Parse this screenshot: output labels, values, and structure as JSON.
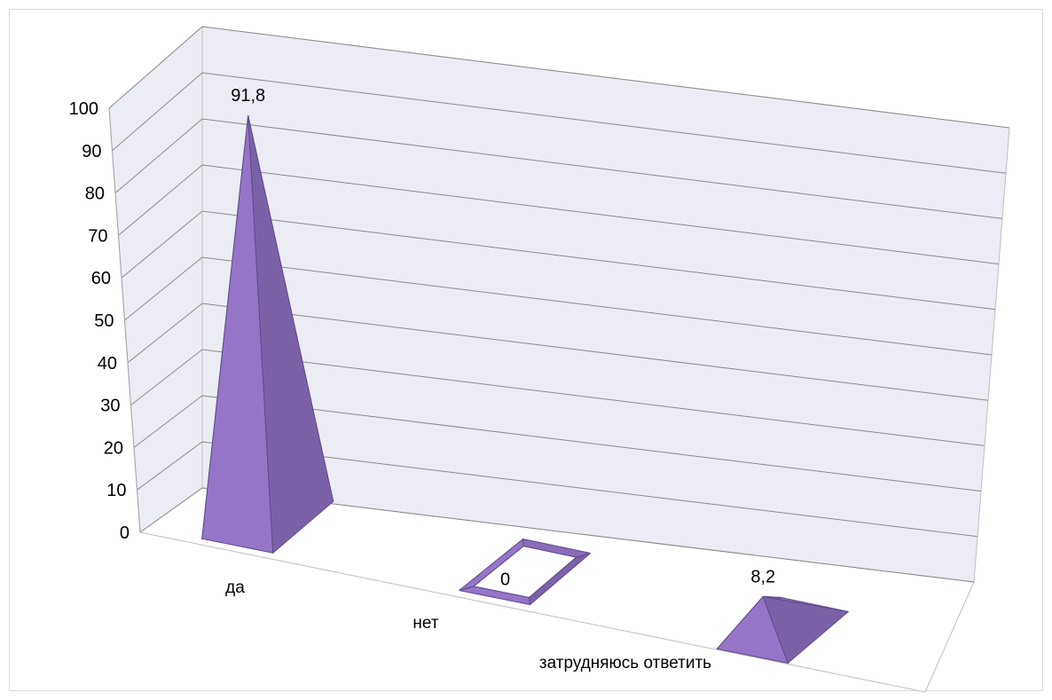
{
  "chart_data": {
    "type": "bar",
    "shape": "3d-pyramid",
    "categories": [
      "да",
      "нет",
      "затрудняюсь ответить"
    ],
    "values": [
      91.8,
      0,
      8.2
    ],
    "value_labels": [
      "91,8",
      "0",
      "8,2"
    ],
    "ylim": [
      0,
      100
    ],
    "yticks": [
      "0",
      "10",
      "20",
      "30",
      "40",
      "50",
      "60",
      "70",
      "80",
      "90",
      "100"
    ],
    "grid": true,
    "legend": "none",
    "title": "",
    "xlabel": "",
    "ylabel": "",
    "colors": {
      "bar_front": "#9575c8",
      "bar_side": "#7b62a8",
      "bar_top": "#8a6cbb",
      "bar_edge": "#5e4a8a",
      "wall": "#ececf4",
      "floor": "#ffffff",
      "gridline": "#8c8c8c"
    }
  }
}
